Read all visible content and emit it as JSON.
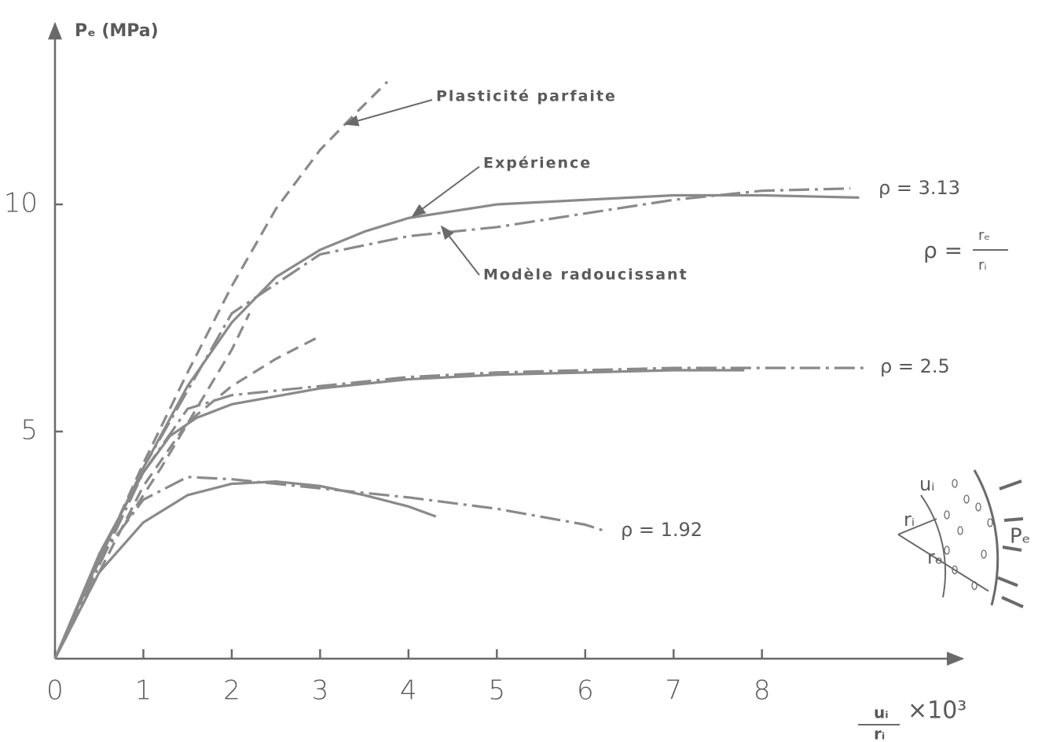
{
  "chart_data": {
    "type": "line",
    "ylabel": "Pₑ (MPa)",
    "xlabel_numerator": "uᵢ",
    "xlabel_denominator": "rᵢ",
    "xlabel_multiplier": "×10³",
    "xlim": [
      0,
      10.27
    ],
    "ylim": [
      0,
      13.98
    ],
    "xticks": [
      0,
      1,
      2,
      3,
      4,
      5,
      6,
      7,
      8
    ],
    "yticks": [
      5,
      10
    ],
    "annotations": [
      "Plasticité parfaite",
      "Expérience",
      "Modèle radoucissant"
    ],
    "curve_labels": [
      "ρ = 3.13",
      "ρ = 2.5",
      "ρ = 1.92"
    ],
    "rho_definition": {
      "lhs": "ρ =",
      "numerator": "rₑ",
      "denominator": "rᵢ"
    },
    "inset_labels": [
      "uᵢ",
      "rᵢ",
      "rₑ",
      "Pₑ"
    ],
    "series": [
      {
        "style": "solid",
        "color": "#8a8a8a",
        "x": [
          0,
          0.5,
          1,
          1.5,
          2,
          2.5,
          3,
          3.5,
          4,
          5,
          6,
          7,
          8,
          9.1
        ],
        "values": [
          0,
          2.2,
          4.2,
          6.0,
          7.4,
          8.4,
          9.0,
          9.4,
          9.7,
          10.0,
          10.1,
          10.2,
          10.2,
          10.15
        ]
      },
      {
        "style": "dashed",
        "color": "#8a8a8a",
        "x": [
          0,
          1,
          1.5,
          2,
          2.5,
          3,
          3.4,
          3.76
        ],
        "values": [
          0,
          4.3,
          6.3,
          8.2,
          9.9,
          11.2,
          12.0,
          12.7
        ]
      },
      {
        "style": "dashdot",
        "color": "#8a8a8a",
        "x": [
          0,
          1,
          2,
          3,
          4,
          5,
          6,
          7,
          8,
          9
        ],
        "values": [
          0,
          4.2,
          7.6,
          8.9,
          9.3,
          9.5,
          9.8,
          10.1,
          10.3,
          10.35
        ]
      },
      {
        "style": "solid",
        "color": "#8a8a8a",
        "x": [
          0,
          0.5,
          1,
          1.3,
          1.6,
          2,
          3,
          4,
          5,
          6,
          7,
          7.8
        ],
        "values": [
          0,
          2.3,
          4.1,
          4.9,
          5.3,
          5.6,
          5.95,
          6.15,
          6.25,
          6.3,
          6.35,
          6.35
        ]
      },
      {
        "style": "dashed",
        "color": "#8a8a8a",
        "x": [
          0,
          1,
          1.5,
          2,
          2.5,
          3
        ],
        "values": [
          0,
          3.8,
          5.2,
          6.0,
          6.6,
          7.1
        ]
      },
      {
        "style": "dashdot",
        "color": "#8a8a8a",
        "x": [
          0,
          1,
          1.5,
          2,
          3,
          4,
          5,
          6,
          7,
          8,
          9.16
        ],
        "values": [
          0,
          4.1,
          5.5,
          5.8,
          6.0,
          6.2,
          6.3,
          6.35,
          6.4,
          6.4,
          6.4
        ]
      },
      {
        "style": "solid",
        "color": "#8a8a8a",
        "x": [
          0,
          0.5,
          1,
          1.5,
          2,
          2.5,
          3,
          3.5,
          4,
          4.31
        ],
        "values": [
          0,
          1.9,
          3.0,
          3.6,
          3.85,
          3.9,
          3.8,
          3.6,
          3.35,
          3.13
        ]
      },
      {
        "style": "dashed",
        "color": "#8a8a8a",
        "x": [
          0.8,
          1.2,
          1.6,
          2.0,
          2.2
        ],
        "values": [
          3.0,
          4.2,
          5.5,
          6.8,
          7.6
        ]
      },
      {
        "style": "dashdot",
        "color": "#8a8a8a",
        "x": [
          0,
          0.5,
          1,
          1.5,
          2,
          3,
          4,
          5,
          6,
          6.24
        ],
        "values": [
          0,
          2.2,
          3.5,
          4.0,
          3.95,
          3.75,
          3.55,
          3.3,
          2.95,
          2.8
        ]
      }
    ]
  }
}
